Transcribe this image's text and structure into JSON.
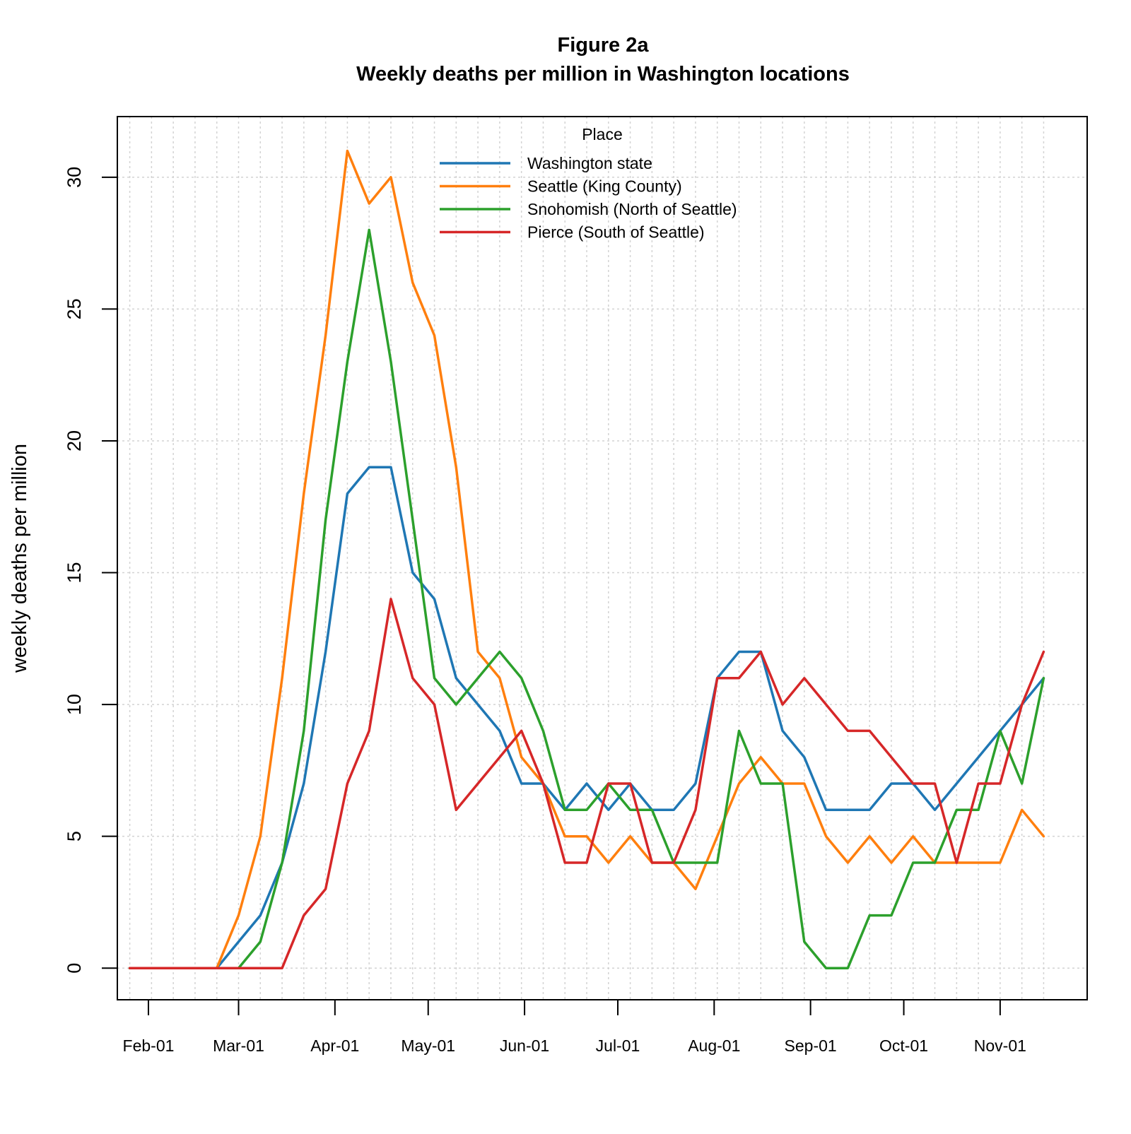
{
  "chart_data": {
    "type": "line",
    "title": "Figure 2a",
    "subtitle": "Weekly deaths per million in Washington locations",
    "xlabel": "",
    "ylabel": "weekly deaths per million",
    "ylim": [
      -1.2,
      32.3
    ],
    "xlim": [
      "2020-01-22",
      "2020-11-29"
    ],
    "yticks": [
      0,
      5,
      10,
      15,
      20,
      25,
      30
    ],
    "xticks": [
      {
        "date": "2020-02-01",
        "label": "Feb-01"
      },
      {
        "date": "2020-03-01",
        "label": "Mar-01"
      },
      {
        "date": "2020-04-01",
        "label": "Apr-01"
      },
      {
        "date": "2020-05-01",
        "label": "May-01"
      },
      {
        "date": "2020-06-01",
        "label": "Jun-01"
      },
      {
        "date": "2020-07-01",
        "label": "Jul-01"
      },
      {
        "date": "2020-08-01",
        "label": "Aug-01"
      },
      {
        "date": "2020-09-01",
        "label": "Sep-01"
      },
      {
        "date": "2020-10-01",
        "label": "Oct-01"
      },
      {
        "date": "2020-11-01",
        "label": "Nov-01"
      }
    ],
    "grid": true,
    "legend": {
      "title": "Place",
      "position": "top-center"
    },
    "x": [
      "2020-01-26",
      "2020-02-02",
      "2020-02-09",
      "2020-02-16",
      "2020-02-23",
      "2020-03-01",
      "2020-03-08",
      "2020-03-15",
      "2020-03-22",
      "2020-03-29",
      "2020-04-05",
      "2020-04-12",
      "2020-04-19",
      "2020-04-26",
      "2020-05-03",
      "2020-05-10",
      "2020-05-17",
      "2020-05-24",
      "2020-05-31",
      "2020-06-07",
      "2020-06-14",
      "2020-06-21",
      "2020-06-28",
      "2020-07-05",
      "2020-07-12",
      "2020-07-19",
      "2020-07-26",
      "2020-08-02",
      "2020-08-09",
      "2020-08-16",
      "2020-08-23",
      "2020-08-30",
      "2020-09-06",
      "2020-09-13",
      "2020-09-20",
      "2020-09-27",
      "2020-10-04",
      "2020-10-11",
      "2020-10-18",
      "2020-10-25",
      "2020-11-01",
      "2020-11-08",
      "2020-11-15"
    ],
    "series": [
      {
        "name": "Washington state",
        "color": "#1f77b4",
        "values": [
          0,
          0,
          0,
          0,
          0,
          1,
          2,
          4,
          7,
          12,
          18,
          19,
          19,
          15,
          14,
          11,
          10,
          9,
          7,
          7,
          6,
          7,
          6,
          7,
          6,
          6,
          7,
          11,
          12,
          12,
          9,
          8,
          6,
          6,
          6,
          7,
          7,
          6,
          7,
          8,
          9,
          10,
          11
        ]
      },
      {
        "name": "Seattle (King County)",
        "color": "#ff7f0e",
        "values": [
          0,
          0,
          0,
          0,
          0,
          2,
          5,
          11,
          18,
          24,
          31,
          29,
          30,
          26,
          24,
          19,
          12,
          11,
          8,
          7,
          5,
          5,
          4,
          5,
          4,
          4,
          3,
          5,
          7,
          8,
          7,
          7,
          5,
          4,
          5,
          4,
          5,
          4,
          4,
          4,
          4,
          6,
          5
        ]
      },
      {
        "name": "Snohomish (North of Seattle)",
        "color": "#2ca02c",
        "values": [
          0,
          0,
          0,
          0,
          0,
          0,
          1,
          4,
          9,
          17,
          23,
          28,
          23,
          17,
          11,
          10,
          11,
          12,
          11,
          9,
          6,
          6,
          7,
          6,
          6,
          4,
          4,
          4,
          9,
          7,
          7,
          1,
          0,
          0,
          2,
          2,
          4,
          4,
          6,
          6,
          9,
          7,
          11
        ]
      },
      {
        "name": "Pierce (South of Seattle)",
        "color": "#d62728",
        "values": [
          0,
          0,
          0,
          0,
          0,
          0,
          0,
          0,
          2,
          3,
          7,
          9,
          14,
          11,
          10,
          6,
          7,
          8,
          9,
          7,
          4,
          4,
          7,
          7,
          4,
          4,
          6,
          11,
          11,
          12,
          10,
          11,
          10,
          9,
          9,
          8,
          7,
          7,
          4,
          7,
          7,
          10,
          12
        ]
      }
    ]
  }
}
